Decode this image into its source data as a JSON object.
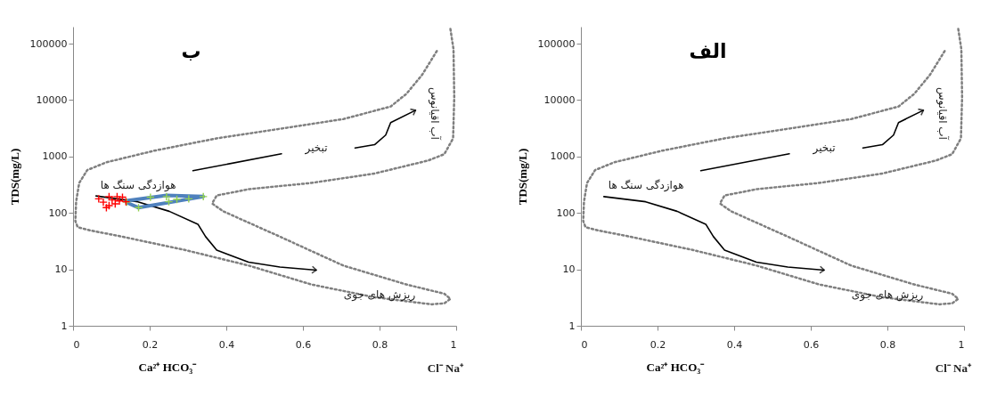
{
  "chart_data": [
    {
      "type": "scatter",
      "title": "ب",
      "ylabel": "TDS(mg/L)",
      "xlabel": "Ca²⁺  HCO₃⁻",
      "annotations": [
        "Cl⁻   Na⁺",
        "هوازدگی سنگ ها",
        "تبخیر",
        "آب اقیانوس",
        "ریزش های جوی"
      ],
      "xlim": [
        0,
        1
      ],
      "xticks": [
        0,
        0.2,
        0.4,
        0.6,
        0.8,
        1
      ],
      "ylim": [
        1,
        200000
      ],
      "yticks": [
        1,
        10,
        100,
        1000,
        10000,
        100000
      ],
      "log": "y",
      "series": [
        {
          "type": "line",
          "color": "#7f7f7f",
          "line_style": "dotted",
          "x": [
            0.985,
            0.993,
            0.995,
            0.992,
            0.969,
            0.927,
            0.787,
            0.622,
            0.458,
            0.375,
            0.363,
            0.392,
            0.54,
            0.705,
            0.87,
            0.969,
            0.985,
            0.969,
            0.936,
            0.787,
            0.622,
            0.458,
            0.293,
            0.128,
            0.045,
            0.012,
            0.006,
            0.008,
            0.016,
            0.037,
            0.087,
            0.21,
            0.375,
            0.54,
            0.705,
            0.829,
            0.87,
            0.911,
            0.952
          ],
          "values": [
            182000,
            80000,
            11300,
            2100,
            1100,
            850,
            500,
            340,
            263,
            204,
            147,
            107,
            38,
            11.7,
            5.4,
            3.7,
            3.0,
            2.5,
            2.4,
            3.2,
            5.4,
            11.7,
            22,
            38,
            49,
            56,
            72,
            158,
            340,
            575,
            790,
            1260,
            2100,
            3100,
            4600,
            7700,
            12900,
            28000,
            79000
          ]
        },
        {
          "type": "line",
          "color": "#000000",
          "line_style": "solid",
          "x": [
            0.06,
            0.169,
            0.251,
            0.326,
            0.346,
            0.375,
            0.458,
            0.54,
            0.635
          ],
          "values": [
            200,
            158,
            107,
            63,
            38,
            22,
            13.4,
            11,
            9.7
          ]
        },
        {
          "type": "line",
          "color": "#000000",
          "line_style": "solid",
          "x": [
            0.313,
            0.544,
            0.64,
            0.736,
            0.787,
            0.816,
            0.829,
            0.894
          ],
          "values": [
            560,
            1120,
            null,
            1420,
            1620,
            2400,
            4000,
            6600
          ]
        },
        {
          "type": "line",
          "color": "#4f81bd",
          "x": [
            0.14,
            0.171,
            0.34,
            0.244,
            0.14
          ],
          "values": [
            153,
            124,
            195,
            205,
            165
          ]
        },
        {
          "color": "#92d050",
          "marker": "cross",
          "x": [
            0.14,
            0.171,
            0.202,
            0.244,
            0.25,
            0.271,
            0.302,
            0.34
          ],
          "values": [
            155,
            124,
            190,
            195,
            158,
            174,
            178,
            195
          ]
        },
        {
          "color": "#ff0000",
          "marker": "cross",
          "x": [
            0.067,
            0.079,
            0.087,
            0.094,
            0.094,
            0.102,
            0.11,
            0.115,
            0.121,
            0.129,
            0.138
          ],
          "values": [
            178,
            155,
            124,
            195,
            135,
            170,
            145,
            195,
            163,
            190,
            158
          ]
        }
      ]
    },
    {
      "type": "line",
      "title": "الف",
      "ylabel": "TDS(mg/L)",
      "xlabel": "Ca²⁺  HCO₃⁻",
      "annotations": [
        "Cl⁻   Na⁺",
        "هوازدگی سنگ ها",
        "تبخیر",
        "آب اقیانوس",
        "ریزش های جوی"
      ],
      "xlim": [
        0,
        1
      ],
      "xticks": [
        0,
        0.2,
        0.4,
        0.6,
        0.8,
        1
      ],
      "ylim": [
        1,
        200000
      ],
      "yticks": [
        1,
        10,
        100,
        1000,
        10000,
        100000
      ],
      "log": "y",
      "series": [
        {
          "type": "line",
          "color": "#7f7f7f",
          "line_style": "dotted",
          "x": [
            0.985,
            0.993,
            0.995,
            0.992,
            0.969,
            0.927,
            0.787,
            0.622,
            0.458,
            0.375,
            0.363,
            0.392,
            0.54,
            0.705,
            0.87,
            0.969,
            0.985,
            0.969,
            0.936,
            0.787,
            0.622,
            0.458,
            0.293,
            0.128,
            0.045,
            0.012,
            0.006,
            0.008,
            0.016,
            0.037,
            0.087,
            0.21,
            0.375,
            0.54,
            0.705,
            0.829,
            0.87,
            0.911,
            0.952
          ],
          "values": [
            182000,
            80000,
            11300,
            2100,
            1100,
            850,
            500,
            340,
            263,
            204,
            147,
            107,
            38,
            11.7,
            5.4,
            3.7,
            3.0,
            2.5,
            2.4,
            3.2,
            5.4,
            11.7,
            22,
            38,
            49,
            56,
            72,
            158,
            340,
            575,
            790,
            1260,
            2100,
            3100,
            4600,
            7700,
            12900,
            28000,
            79000
          ]
        },
        {
          "color": "#000000",
          "line_style": "solid",
          "x": [
            0.06,
            0.169,
            0.251,
            0.326,
            0.346,
            0.375,
            0.458,
            0.54,
            0.635
          ],
          "values": [
            195,
            158,
            107,
            63,
            38,
            22,
            13.4,
            11,
            9.7
          ]
        },
        {
          "type": "line",
          "color": "#000000",
          "line_style": "solid",
          "x": [
            0.313,
            0.544,
            0.64,
            0.736,
            0.787,
            0.816,
            0.829,
            0.894
          ],
          "values": [
            560,
            1120,
            null,
            1420,
            1620,
            2400,
            4000,
            6600
          ]
        }
      ]
    }
  ]
}
